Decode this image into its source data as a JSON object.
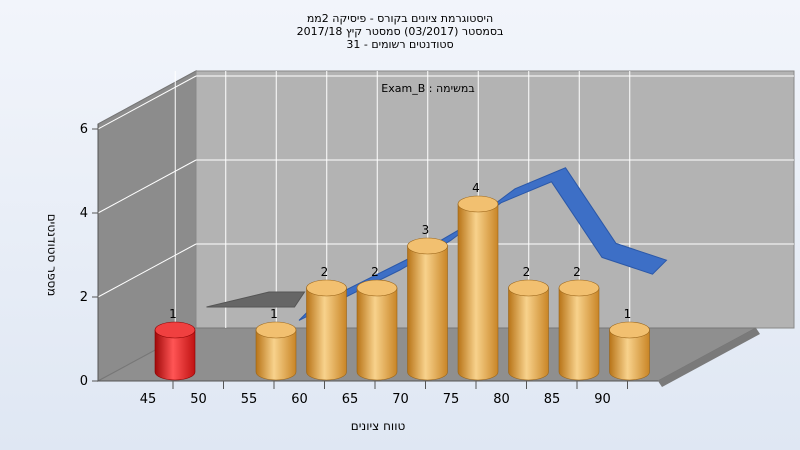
{
  "chart_data": {
    "type": "bar",
    "title_lines": [
      "היסטוגרמת ציונים בקורס - פיסיקה 2ממ",
      "בסמסטר  (03/2017)  סמסטר קיץ 2017/18",
      "סטודנטים רשומים - 31"
    ],
    "annotation": "במשימה : Exam_B",
    "xlabel": "טווח ציונים",
    "ylabel": "מספר סטודנטים",
    "x_ticks": [
      "45",
      "50",
      "55",
      "60",
      "65",
      "70",
      "75",
      "80",
      "85",
      "90"
    ],
    "y_ticks": [
      "0",
      "2",
      "4",
      "6"
    ],
    "ylim": [
      0,
      6
    ],
    "series": [
      {
        "x": [
          45,
          55,
          60,
          65,
          70,
          75,
          80,
          85,
          90
        ],
        "values": [
          1,
          1,
          2,
          2,
          3,
          4,
          2,
          2,
          1
        ],
        "data_labels": [
          "1",
          "1",
          "2",
          "2",
          "3",
          "4",
          "2",
          "2",
          "1"
        ]
      }
    ],
    "trend_line": {
      "x": [
        55,
        60,
        65,
        70,
        75,
        80,
        85,
        90
      ],
      "values": [
        0.8,
        1.4,
        2.0,
        2.7,
        3.6,
        4.1,
        2.3,
        1.9
      ]
    },
    "grid": true,
    "colors": {
      "highlight_bar": "#e81818",
      "bars": "#e8a443",
      "trend": "#3d6fc6",
      "floor": "#8f8f8f",
      "back_wall": "#b3b3b3",
      "side_wall": "#8c8c8c"
    }
  }
}
